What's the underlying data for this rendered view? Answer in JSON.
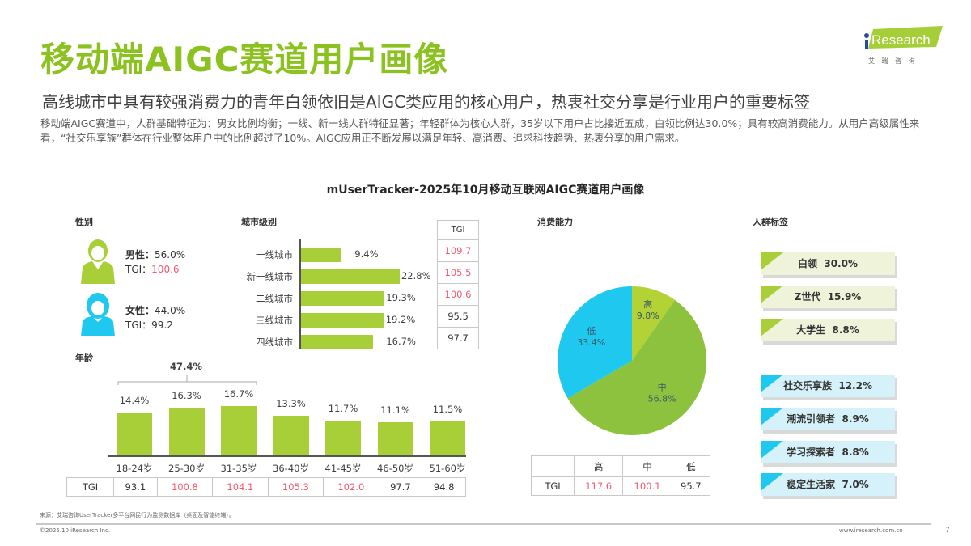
{
  "header": {
    "title": "移动端AIGC赛道用户画像",
    "subtitle": "高线城市中具有较强消费力的青年白领依旧是AIGC类应用的核心用户，热衷社交分享是行业用户的重要标签",
    "body": "移动端AIGC赛道中，人群基础特征为：男女比例均衡；一线、新一线人群特征显著；年轻群体为核心人群，35岁以下用户占比接近五成，白领比例达30.0%；具有较高消费能力。从用户高级属性来看，“社交乐享族”群体在行业整体用户中的比例超过了10%。AIGC应用正不断发展以满足年轻、高消费、追求科技趋势、热衷分享的用户需求。"
  },
  "logo": {
    "text": "iResearch",
    "sub": "艾 瑞 咨 询",
    "color": "#a6ce39"
  },
  "chart_title": "mUserTracker-2025年10月移动互联网AIGC赛道用户画像",
  "colors": {
    "green": "#a9cf38",
    "pie_high": "#b3d235",
    "pie_mid": "#8dc23f",
    "pie_low": "#1ec8ef",
    "tgi_high": "#ef5a6f"
  },
  "chart_data": [
    {
      "type": "table",
      "title": "性别",
      "rows": [
        {
          "label": "男性：",
          "value": "56.0%",
          "tgi_label": "TGI：",
          "tgi": "100.6",
          "icon": "male-user-icon"
        },
        {
          "label": "女性：",
          "value": "44.0%",
          "tgi_label": "TGI：",
          "tgi": "99.2",
          "icon": "female-user-icon"
        }
      ]
    },
    {
      "type": "bar",
      "title": "城市级别",
      "orientation": "horizontal",
      "categories": [
        "一线城市",
        "新一线城市",
        "二线城市",
        "三线城市",
        "四线城市"
      ],
      "values": [
        9.4,
        22.8,
        19.3,
        19.2,
        16.7
      ],
      "labels": [
        "9.4%",
        "22.8%",
        "19.3%",
        "19.2%",
        "16.7%"
      ],
      "tgi_header": "TGI",
      "tgi": [
        "109.7",
        "105.5",
        "100.6",
        "95.5",
        "97.7"
      ]
    },
    {
      "type": "bar",
      "title": "年龄",
      "categories": [
        "18-24岁",
        "25-30岁",
        "31-35岁",
        "36-40岁",
        "41-45岁",
        "46-50岁",
        "51-60岁"
      ],
      "values": [
        14.4,
        16.3,
        16.7,
        13.3,
        11.7,
        11.1,
        11.5
      ],
      "labels": [
        "14.4%",
        "16.3%",
        "16.7%",
        "13.3%",
        "11.7%",
        "11.1%",
        "11.5%"
      ],
      "annotation": "47.4%",
      "tgi_header": "TGI",
      "tgi": [
        "93.1",
        "100.8",
        "104.1",
        "105.3",
        "102.0",
        "97.7",
        "94.8"
      ]
    },
    {
      "type": "pie",
      "title": "消费能力",
      "categories": [
        "高",
        "中",
        "低"
      ],
      "values": [
        9.8,
        56.8,
        33.4
      ],
      "labels": [
        "9.8%",
        "56.8%",
        "33.4%"
      ],
      "tgi_header": "TGI",
      "tgi": [
        "117.6",
        "100.1",
        "95.7"
      ]
    },
    {
      "type": "table",
      "title": "人群标签",
      "tags": [
        {
          "text": "白领  30.0%",
          "group": "green"
        },
        {
          "text": "Z世代  15.9%",
          "group": "green"
        },
        {
          "text": "大学生  8.8%",
          "group": "green"
        },
        {
          "text": "社交乐享族  12.2%",
          "group": "blue"
        },
        {
          "text": "潮流引领者  8.9%",
          "group": "blue"
        },
        {
          "text": "学习探索者  8.8%",
          "group": "blue"
        },
        {
          "text": "稳定生活家  7.0%",
          "group": "blue"
        }
      ]
    }
  ],
  "footer": {
    "source": "来源：艾瑞咨询UserTracker多平台网民行为监测数据库（桌面及智能终端）。",
    "copyright": "©2025.10 iResearch Inc.",
    "url": "www.iresearch.com.cn",
    "page": "7"
  }
}
